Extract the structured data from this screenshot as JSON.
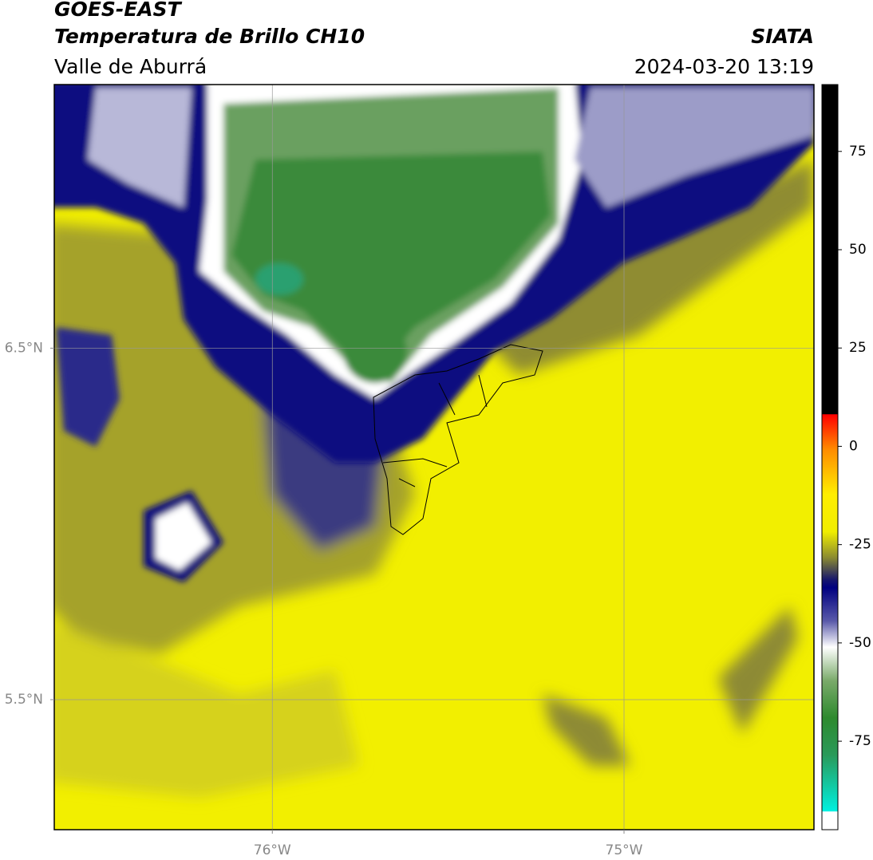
{
  "header": {
    "title": "GOES-EAST",
    "subtitle": "Temperatura de Brillo CH10",
    "region": "Valle de Aburrá",
    "source": "SIATA",
    "datetime": "2024-03-20 13:19"
  },
  "map": {
    "xlim": [
      -76.62,
      -74.46
    ],
    "ylim": [
      5.13,
      7.25
    ],
    "lat_ticks": [
      {
        "value": 6.5,
        "label": "6.5°N"
      },
      {
        "value": 5.5,
        "label": "5.5°N"
      }
    ],
    "lon_ticks": [
      {
        "value": -76,
        "label": "76°W"
      },
      {
        "value": -75,
        "label": "75°W"
      }
    ],
    "grid": true
  },
  "colorbar": {
    "lim": [
      -97.5,
      92
    ],
    "ticks": [
      75,
      50,
      25,
      0,
      -25,
      -50,
      -75
    ]
  }
}
